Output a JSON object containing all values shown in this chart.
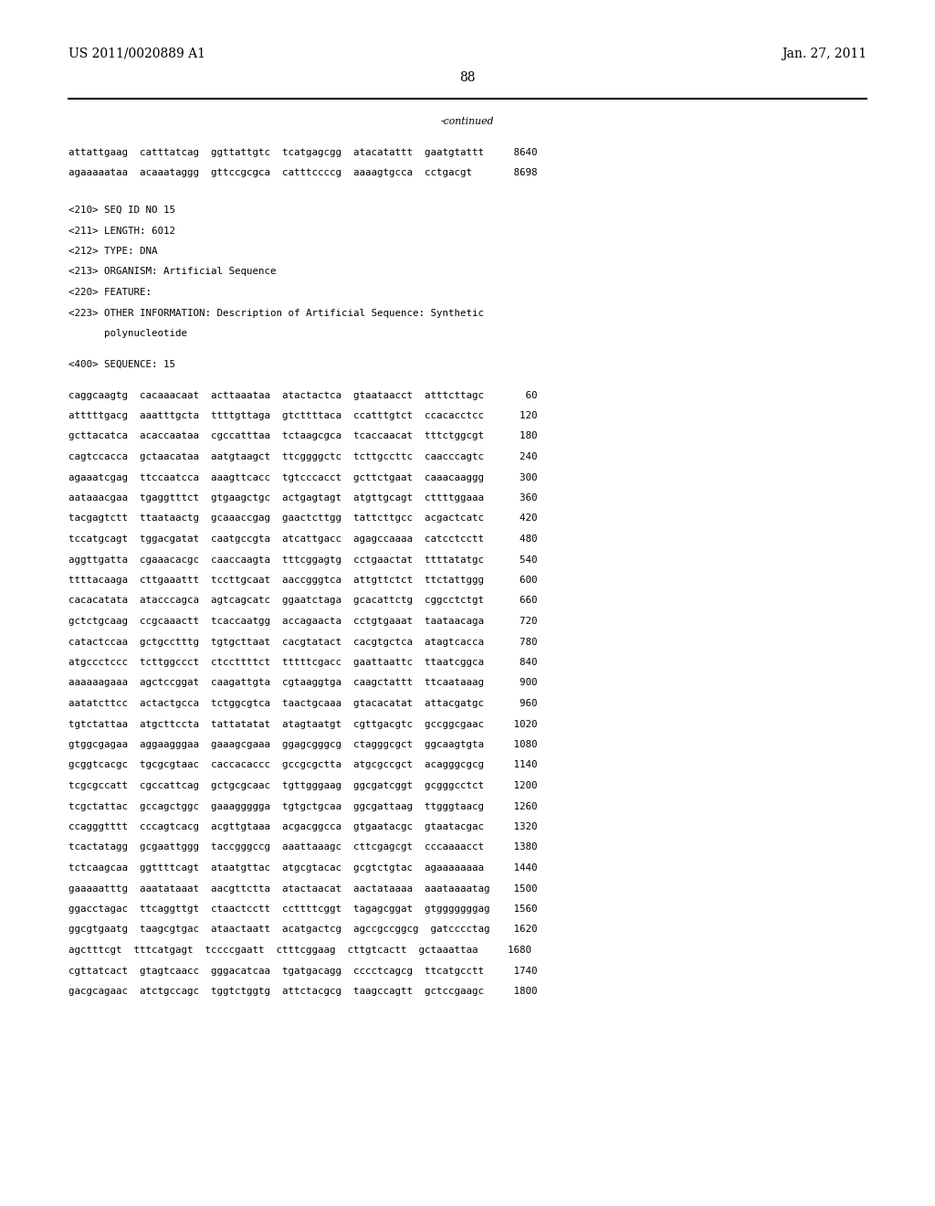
{
  "header_left": "US 2011/0020889 A1",
  "header_right": "Jan. 27, 2011",
  "page_number": "88",
  "continued_label": "-continued",
  "background_color": "#ffffff",
  "text_color": "#000000",
  "seq_lines": [
    "attattgaag  catttatcag  ggttattgtc  tcatgagcgg  atacatattt  gaatgtattt     8640",
    "agaaaaataa  acaaataggg  gttccgcgca  catttccccg  aaaagtgcca  cctgacgt       8698"
  ],
  "meta_lines": [
    "<210> SEQ ID NO 15",
    "<211> LENGTH: 6012",
    "<212> TYPE: DNA",
    "<213> ORGANISM: Artificial Sequence",
    "<220> FEATURE:",
    "<223> OTHER INFORMATION: Description of Artificial Sequence: Synthetic",
    "      polynucleotide",
    "",
    "<400> SEQUENCE: 15"
  ],
  "sequence_lines": [
    "caggcaagtg  cacaaacaat  acttaaataa  atactactca  gtaataacct  atttcttagc       60",
    "atttttgacg  aaatttgcta  ttttgttaga  gtcttttaca  ccatttgtct  ccacacctcc      120",
    "gcttacatca  acaccaataa  cgccatttaa  tctaagcgca  tcaccaacat  tttctggcgt      180",
    "cagtccacca  gctaacataa  aatgtaagct  ttcggggctc  tcttgccttc  caacccagtc      240",
    "agaaatcgag  ttccaatcca  aaagttcacc  tgtcccacct  gcttctgaat  caaacaaggg      300",
    "aataaacgaa  tgaggtttct  gtgaagctgc  actgagtagt  atgttgcagt  cttttggaaa      360",
    "tacgagtctt  ttaataactg  gcaaaccgag  gaactcttgg  tattcttgcc  acgactcatc      420",
    "tccatgcagt  tggacgatat  caatgccgta  atcattgacc  agagccaaaa  catcctcctt      480",
    "aggttgatta  cgaaacacgc  caaccaagta  tttcggagtg  cctgaactat  ttttatatgc      540",
    "ttttacaaga  cttgaaattt  tccttgcaat  aaccgggtca  attgttctct  ttctattggg      600",
    "cacacatata  atacccagca  agtcagcatc  ggaatctaga  gcacattctg  cggcctctgt      660",
    "gctctgcaag  ccgcaaactt  tcaccaatgg  accagaacta  cctgtgaaat  taataacaga      720",
    "catactccaa  gctgcctttg  tgtgcttaat  cacgtatact  cacgtgctca  atagtcacca      780",
    "atgccctccc  tcttggccct  ctccttttct  tttttcgacc  gaattaattc  ttaatcggca      840",
    "aaaaaagaaa  agctccggat  caagattgta  cgtaaggtga  caagctattt  ttcaataaag      900",
    "aatatcttcc  actactgcca  tctggcgtca  taactgcaaa  gtacacatat  attacgatgc      960",
    "tgtctattaa  atgcttccta  tattatatat  atagtaatgt  cgttgacgtc  gccggcgaac     1020",
    "gtggcgagaa  aggaagggaa  gaaagcgaaa  ggagcgggcg  ctagggcgct  ggcaagtgta     1080",
    "gcggtcacgc  tgcgcgtaac  caccacaccc  gccgcgctta  atgcgccgct  acagggcgcg     1140",
    "tcgcgccatt  cgccattcag  gctgcgcaac  tgttgggaag  ggcgatcggt  gcgggcctct     1200",
    "tcgctattac  gccagctggc  gaaaggggga  tgtgctgcaa  ggcgattaag  ttgggtaacg     1260",
    "ccagggtttt  cccagtcacg  acgttgtaaa  acgacggcca  gtgaatacgc  gtaatacgac     1320",
    "tcactatagg  gcgaattggg  taccgggccg  aaattaaagc  cttcgagcgt  cccaaaacct     1380",
    "tctcaagcaa  ggttttcagt  ataatgttac  atgcgtacac  gcgtctgtac  agaaaaaaaa     1440",
    "gaaaaatttg  aaatataaat  aacgttctta  atactaacat  aactataaaa  aaataaaatag    1500",
    "ggacctagac  ttcaggttgt  ctaactcctt  ccttttcggt  tagagcggat  gtgggggggag    1560",
    "ggcgtgaatg  taagcgtgac  ataactaatt  acatgactcg  agccgccggcg  gatcccctag    1620",
    "agctttcgt  tttcatgagt  tccccgaatt  ctttcggaag  cttgtcactt  gctaaattaa     1680",
    "cgttatcact  gtagtcaacc  gggacatcaa  tgatgacagg  cccctcagcg  ttcatgcctt     1740",
    "gacgcagaac  atctgccagc  tggtctggtg  attctacgcg  taagccagtt  gctccgaagc     1800"
  ]
}
